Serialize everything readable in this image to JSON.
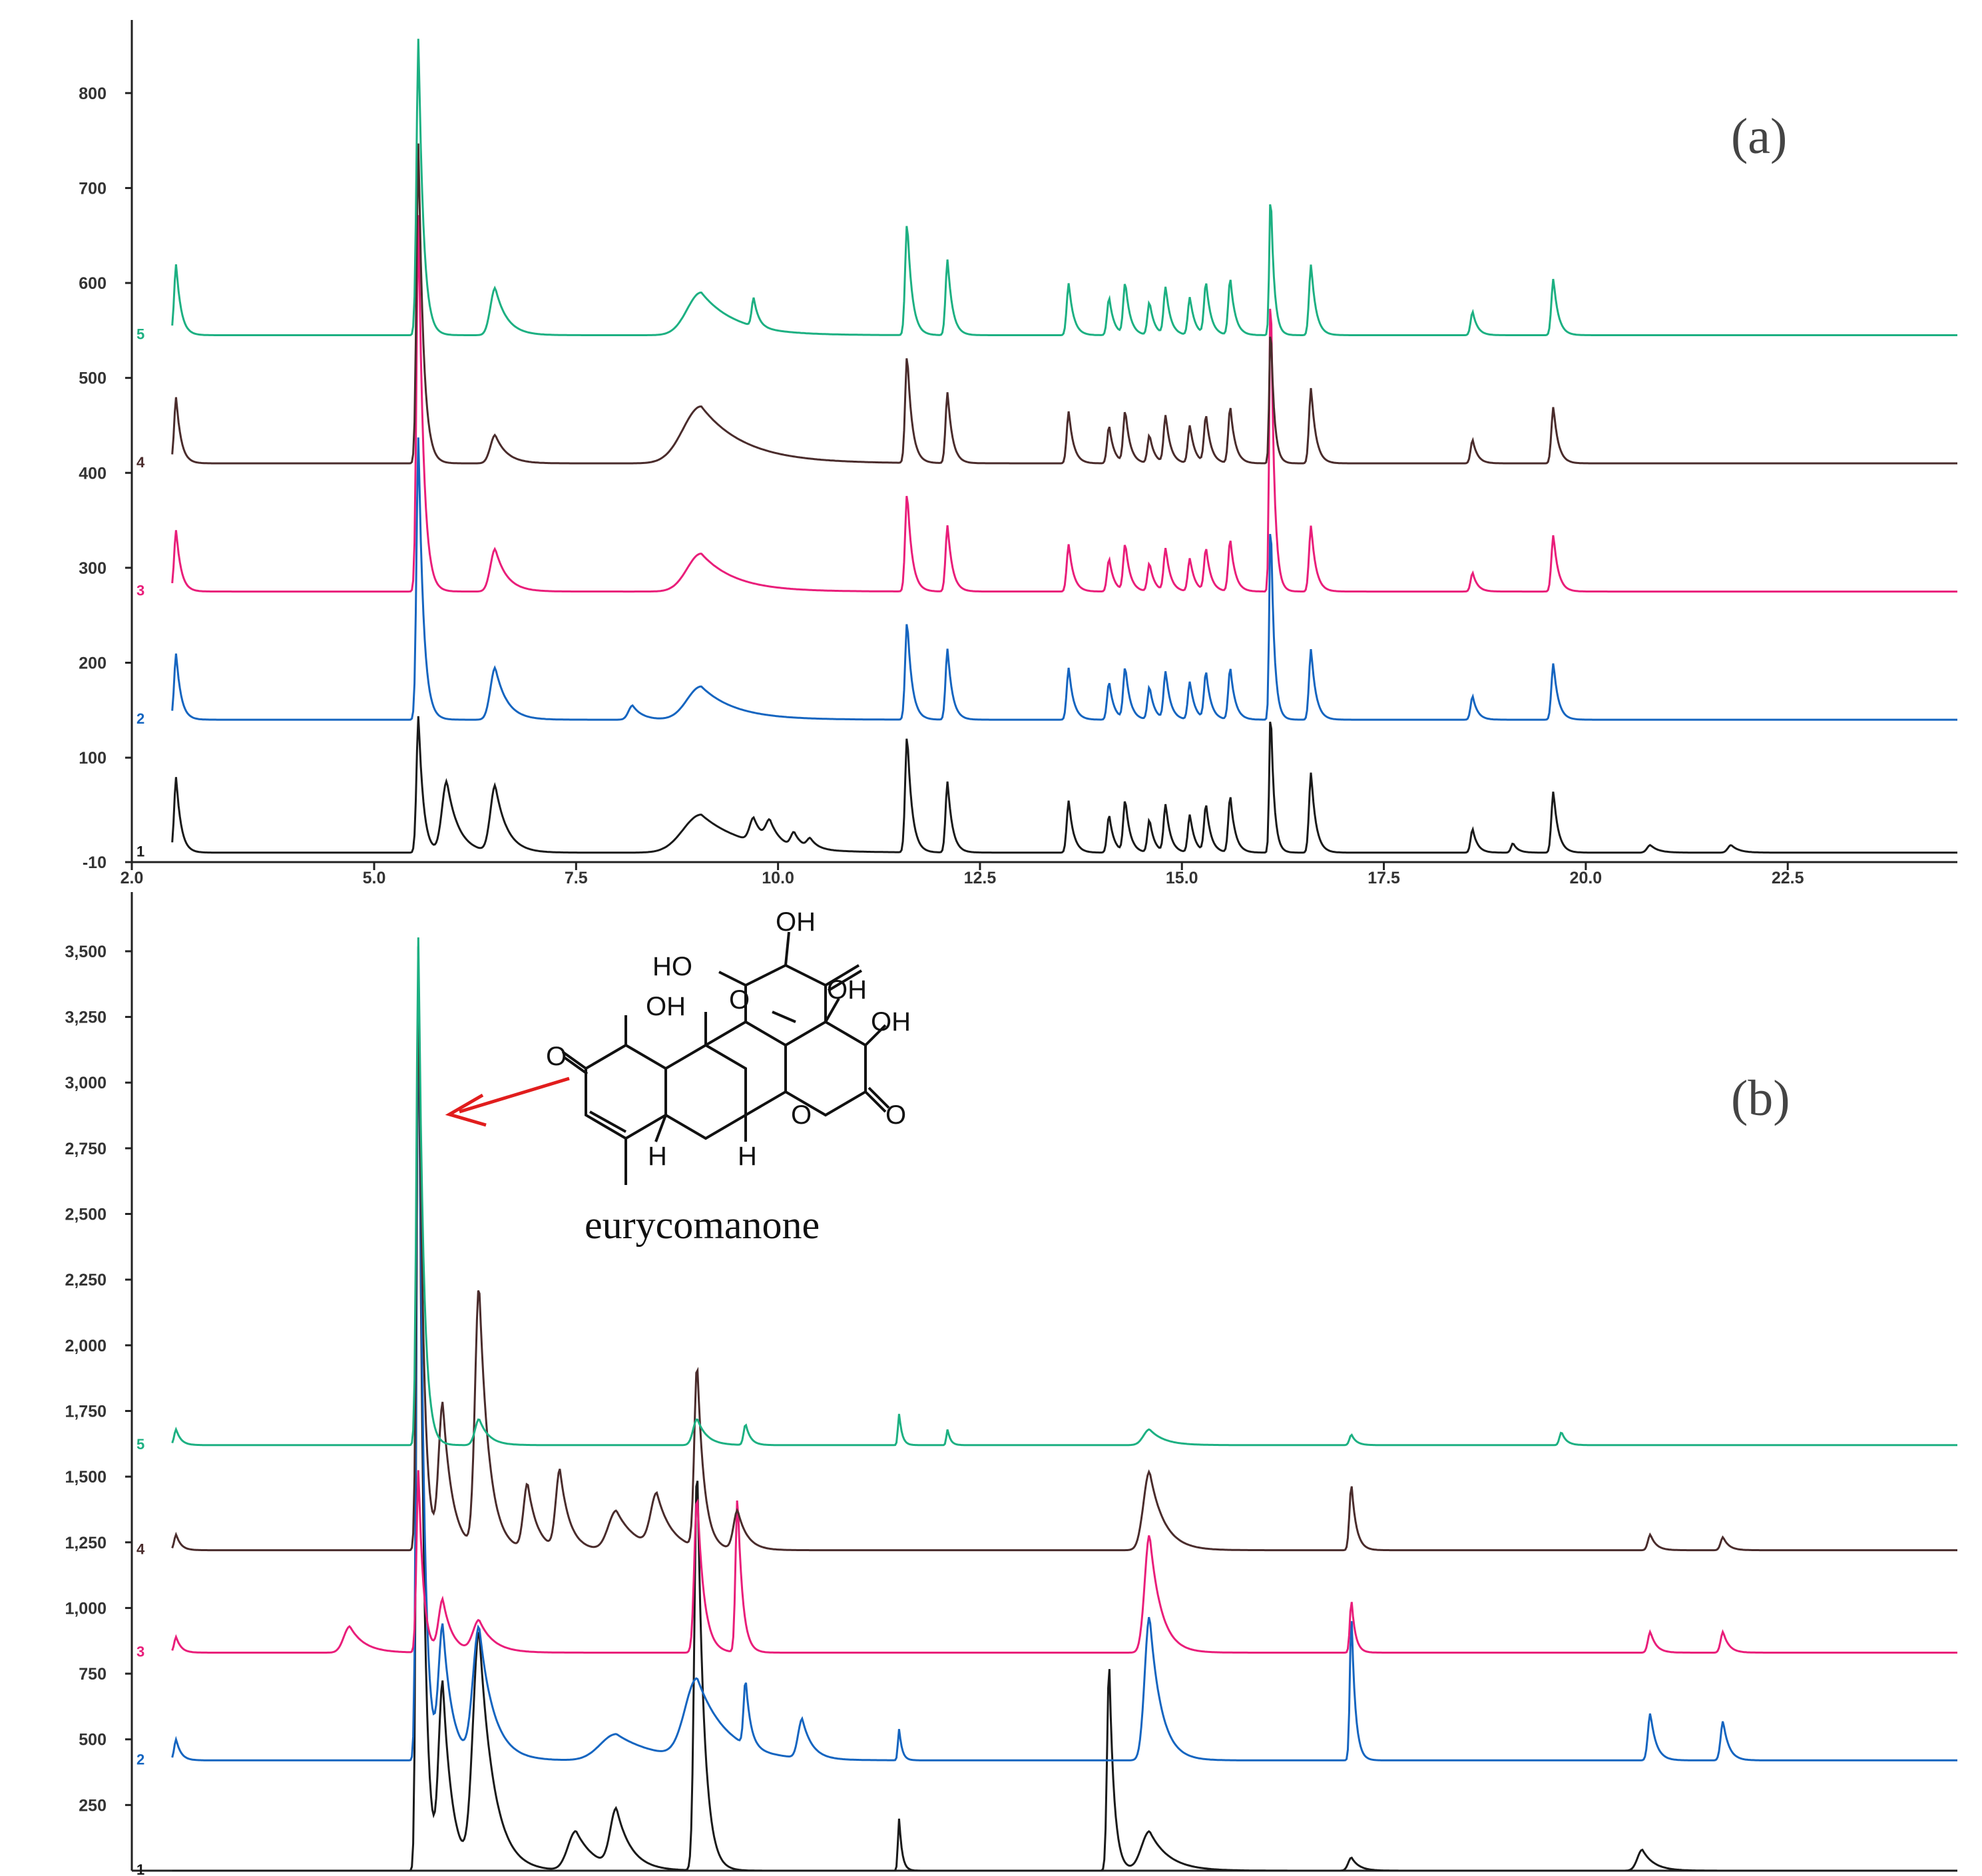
{
  "colors": {
    "1": "#1a1a1a",
    "2": "#1565c0",
    "3": "#e91e7a",
    "4": "#4a2c2c",
    "5": "#1db082",
    "axis": "#222222",
    "arrow": "#e11d1d"
  },
  "chart_data": [
    {
      "id": "a",
      "type": "line",
      "title": "(a)",
      "xlabel": "",
      "ylabel": "",
      "xlim": [
        2.0,
        24.6
      ],
      "ylim": [
        -10,
        870
      ],
      "x_ticks": [
        "2.0",
        "5.0",
        "7.5",
        "10.0",
        "12.5",
        "15.0",
        "17.5",
        "20.0",
        "22.5"
      ],
      "x_tick_values": [
        2.0,
        5.0,
        7.5,
        10.0,
        12.5,
        15.0,
        17.5,
        20.0,
        22.5
      ],
      "y_ticks": [
        "-10",
        "100",
        "200",
        "300",
        "400",
        "500",
        "600",
        "700",
        "800"
      ],
      "y_tick_values": [
        -10,
        100,
        200,
        300,
        400,
        500,
        600,
        700,
        800
      ],
      "series": [
        {
          "name": "1",
          "color_key": "1",
          "baseline": 0,
          "peaks": [
            [
              2.55,
              80,
              0.05
            ],
            [
              5.55,
              145,
              0.05
            ],
            [
              5.9,
              75,
              0.12
            ],
            [
              6.5,
              70,
              0.12
            ],
            [
              9.05,
              40,
              0.45
            ],
            [
              9.7,
              25,
              0.1
            ],
            [
              9.9,
              22,
              0.1
            ],
            [
              10.2,
              15,
              0.08
            ],
            [
              10.4,
              10,
              0.08
            ],
            [
              11.6,
              125,
              0.05
            ],
            [
              12.1,
              75,
              0.05
            ],
            [
              13.6,
              55,
              0.05
            ],
            [
              14.1,
              40,
              0.05
            ],
            [
              14.3,
              55,
              0.05
            ],
            [
              14.6,
              35,
              0.05
            ],
            [
              14.8,
              50,
              0.05
            ],
            [
              15.1,
              40,
              0.05
            ],
            [
              15.3,
              50,
              0.05
            ],
            [
              15.6,
              60,
              0.05
            ],
            [
              16.1,
              155,
              0.035
            ],
            [
              16.6,
              85,
              0.05
            ],
            [
              18.6,
              25,
              0.05
            ],
            [
              19.1,
              10,
              0.05
            ],
            [
              19.6,
              65,
              0.05
            ],
            [
              20.8,
              8,
              0.08
            ],
            [
              21.8,
              8,
              0.08
            ]
          ]
        },
        {
          "name": "2",
          "color_key": "2",
          "baseline": 140,
          "peaks": [
            [
              2.55,
              70,
              0.05
            ],
            [
              5.55,
              300,
              0.05
            ],
            [
              6.5,
              55,
              0.12
            ],
            [
              8.2,
              15,
              0.1
            ],
            [
              9.05,
              35,
              0.35
            ],
            [
              11.6,
              105,
              0.05
            ],
            [
              12.1,
              75,
              0.05
            ],
            [
              13.6,
              55,
              0.05
            ],
            [
              14.1,
              40,
              0.05
            ],
            [
              14.3,
              55,
              0.05
            ],
            [
              14.6,
              35,
              0.05
            ],
            [
              14.8,
              50,
              0.05
            ],
            [
              15.1,
              40,
              0.05
            ],
            [
              15.3,
              50,
              0.05
            ],
            [
              15.6,
              55,
              0.05
            ],
            [
              16.1,
              220,
              0.035
            ],
            [
              16.6,
              75,
              0.05
            ],
            [
              18.6,
              25,
              0.05
            ],
            [
              19.6,
              60,
              0.05
            ]
          ]
        },
        {
          "name": "3",
          "color_key": "3",
          "baseline": 275,
          "peaks": [
            [
              2.55,
              65,
              0.05
            ],
            [
              5.55,
              400,
              0.05
            ],
            [
              6.5,
              45,
              0.12
            ],
            [
              9.05,
              40,
              0.35
            ],
            [
              11.6,
              105,
              0.05
            ],
            [
              12.1,
              70,
              0.05
            ],
            [
              13.6,
              50,
              0.05
            ],
            [
              14.1,
              35,
              0.05
            ],
            [
              14.3,
              50,
              0.05
            ],
            [
              14.6,
              30,
              0.05
            ],
            [
              14.8,
              45,
              0.05
            ],
            [
              15.1,
              35,
              0.05
            ],
            [
              15.3,
              45,
              0.05
            ],
            [
              15.6,
              55,
              0.05
            ],
            [
              16.1,
              335,
              0.035
            ],
            [
              16.6,
              70,
              0.05
            ],
            [
              18.6,
              20,
              0.05
            ],
            [
              19.6,
              60,
              0.05
            ]
          ]
        },
        {
          "name": "4",
          "color_key": "4",
          "baseline": 410,
          "peaks": [
            [
              2.55,
              70,
              0.05
            ],
            [
              5.55,
              340,
              0.05
            ],
            [
              6.5,
              30,
              0.12
            ],
            [
              9.05,
              60,
              0.45
            ],
            [
              11.6,
              115,
              0.05
            ],
            [
              12.1,
              75,
              0.05
            ],
            [
              13.6,
              55,
              0.05
            ],
            [
              14.1,
              40,
              0.05
            ],
            [
              14.3,
              55,
              0.05
            ],
            [
              14.6,
              30,
              0.05
            ],
            [
              14.8,
              50,
              0.05
            ],
            [
              15.1,
              40,
              0.05
            ],
            [
              15.3,
              50,
              0.05
            ],
            [
              15.6,
              60,
              0.05
            ],
            [
              16.1,
              150,
              0.035
            ],
            [
              16.6,
              80,
              0.05
            ],
            [
              18.6,
              25,
              0.05
            ],
            [
              19.6,
              60,
              0.05
            ]
          ]
        },
        {
          "name": "5",
          "color_key": "5",
          "baseline": 545,
          "peaks": [
            [
              2.55,
              75,
              0.05
            ],
            [
              5.55,
              315,
              0.05
            ],
            [
              6.5,
              50,
              0.12
            ],
            [
              9.05,
              45,
              0.35
            ],
            [
              9.7,
              30,
              0.05
            ],
            [
              11.6,
              120,
              0.05
            ],
            [
              12.1,
              80,
              0.05
            ],
            [
              13.6,
              55,
              0.05
            ],
            [
              14.1,
              40,
              0.05
            ],
            [
              14.3,
              55,
              0.05
            ],
            [
              14.6,
              35,
              0.05
            ],
            [
              14.8,
              50,
              0.05
            ],
            [
              15.1,
              40,
              0.05
            ],
            [
              15.3,
              55,
              0.05
            ],
            [
              15.6,
              60,
              0.05
            ],
            [
              16.1,
              155,
              0.035
            ],
            [
              16.6,
              75,
              0.05
            ],
            [
              18.6,
              25,
              0.05
            ],
            [
              19.6,
              60,
              0.05
            ]
          ]
        }
      ]
    },
    {
      "id": "b",
      "type": "line",
      "title": "(b)",
      "xlabel": "",
      "ylabel": "",
      "xlim": [
        2.0,
        24.6
      ],
      "ylim": [
        0,
        3700
      ],
      "x_ticks": [],
      "y_ticks": [
        "250",
        "500",
        "750",
        "1,000",
        "1,250",
        "1,500",
        "1,750",
        "2,000",
        "2,250",
        "2,500",
        "2,750",
        "3,000",
        "3,250",
        "3,500"
      ],
      "y_tick_values": [
        250,
        500,
        750,
        1000,
        1250,
        1500,
        1750,
        2000,
        2250,
        2500,
        2750,
        3000,
        3250,
        3500
      ],
      "annotation": {
        "text": "eurycomanone",
        "points_to_x": 5.55
      },
      "series": [
        {
          "name": "1",
          "color_key": "1",
          "baseline": 0,
          "peaks": [
            [
              5.55,
              3550,
              0.05
            ],
            [
              5.85,
              700,
              0.1
            ],
            [
              6.3,
              900,
              0.15
            ],
            [
              7.5,
              150,
              0.2
            ],
            [
              8.0,
              220,
              0.15
            ],
            [
              9.0,
              1550,
              0.07
            ],
            [
              11.5,
              200,
              0.03
            ],
            [
              14.1,
              800,
              0.05
            ],
            [
              14.6,
              150,
              0.2
            ],
            [
              17.1,
              50,
              0.08
            ],
            [
              20.7,
              80,
              0.12
            ]
          ]
        },
        {
          "name": "2",
          "color_key": "2",
          "baseline": 420,
          "peaks": [
            [
              2.55,
              80,
              0.05
            ],
            [
              5.55,
              3100,
              0.05
            ],
            [
              5.85,
              500,
              0.1
            ],
            [
              6.3,
              500,
              0.15
            ],
            [
              8.0,
              100,
              0.4
            ],
            [
              9.0,
              300,
              0.3
            ],
            [
              9.6,
              250,
              0.05
            ],
            [
              10.3,
              150,
              0.1
            ],
            [
              11.5,
              120,
              0.03
            ],
            [
              14.6,
              550,
              0.12
            ],
            [
              17.1,
              550,
              0.04
            ],
            [
              20.8,
              180,
              0.06
            ],
            [
              21.7,
              150,
              0.06
            ]
          ]
        },
        {
          "name": "3",
          "color_key": "3",
          "baseline": 830,
          "peaks": [
            [
              2.55,
              60,
              0.05
            ],
            [
              4.7,
              100,
              0.15
            ],
            [
              5.55,
              700,
              0.05
            ],
            [
              5.85,
              200,
              0.1
            ],
            [
              6.3,
              120,
              0.15
            ],
            [
              9.0,
              600,
              0.07
            ],
            [
              9.5,
              600,
              0.05
            ],
            [
              14.6,
              450,
              0.12
            ],
            [
              17.1,
              200,
              0.04
            ],
            [
              20.8,
              80,
              0.06
            ],
            [
              21.7,
              80,
              0.06
            ]
          ]
        },
        {
          "name": "4",
          "color_key": "4",
          "baseline": 1220,
          "peaks": [
            [
              2.55,
              60,
              0.05
            ],
            [
              5.55,
              2200,
              0.05
            ],
            [
              5.85,
              550,
              0.1
            ],
            [
              6.3,
              1000,
              0.1
            ],
            [
              6.9,
              250,
              0.1
            ],
            [
              7.3,
              300,
              0.1
            ],
            [
              8.0,
              150,
              0.2
            ],
            [
              8.5,
              200,
              0.15
            ],
            [
              9.0,
              700,
              0.07
            ],
            [
              9.5,
              150,
              0.1
            ],
            [
              14.6,
              300,
              0.15
            ],
            [
              17.1,
              250,
              0.05
            ],
            [
              20.8,
              60,
              0.06
            ],
            [
              21.7,
              50,
              0.06
            ]
          ]
        },
        {
          "name": "5",
          "color_key": "5",
          "baseline": 1620,
          "peaks": [
            [
              2.55,
              60,
              0.05
            ],
            [
              5.55,
              1950,
              0.05
            ],
            [
              6.3,
              100,
              0.1
            ],
            [
              9.0,
              100,
              0.1
            ],
            [
              9.6,
              80,
              0.05
            ],
            [
              11.5,
              120,
              0.03
            ],
            [
              12.1,
              60,
              0.03
            ],
            [
              14.6,
              60,
              0.15
            ],
            [
              17.1,
              40,
              0.05
            ],
            [
              19.7,
              50,
              0.05
            ]
          ]
        }
      ]
    }
  ]
}
